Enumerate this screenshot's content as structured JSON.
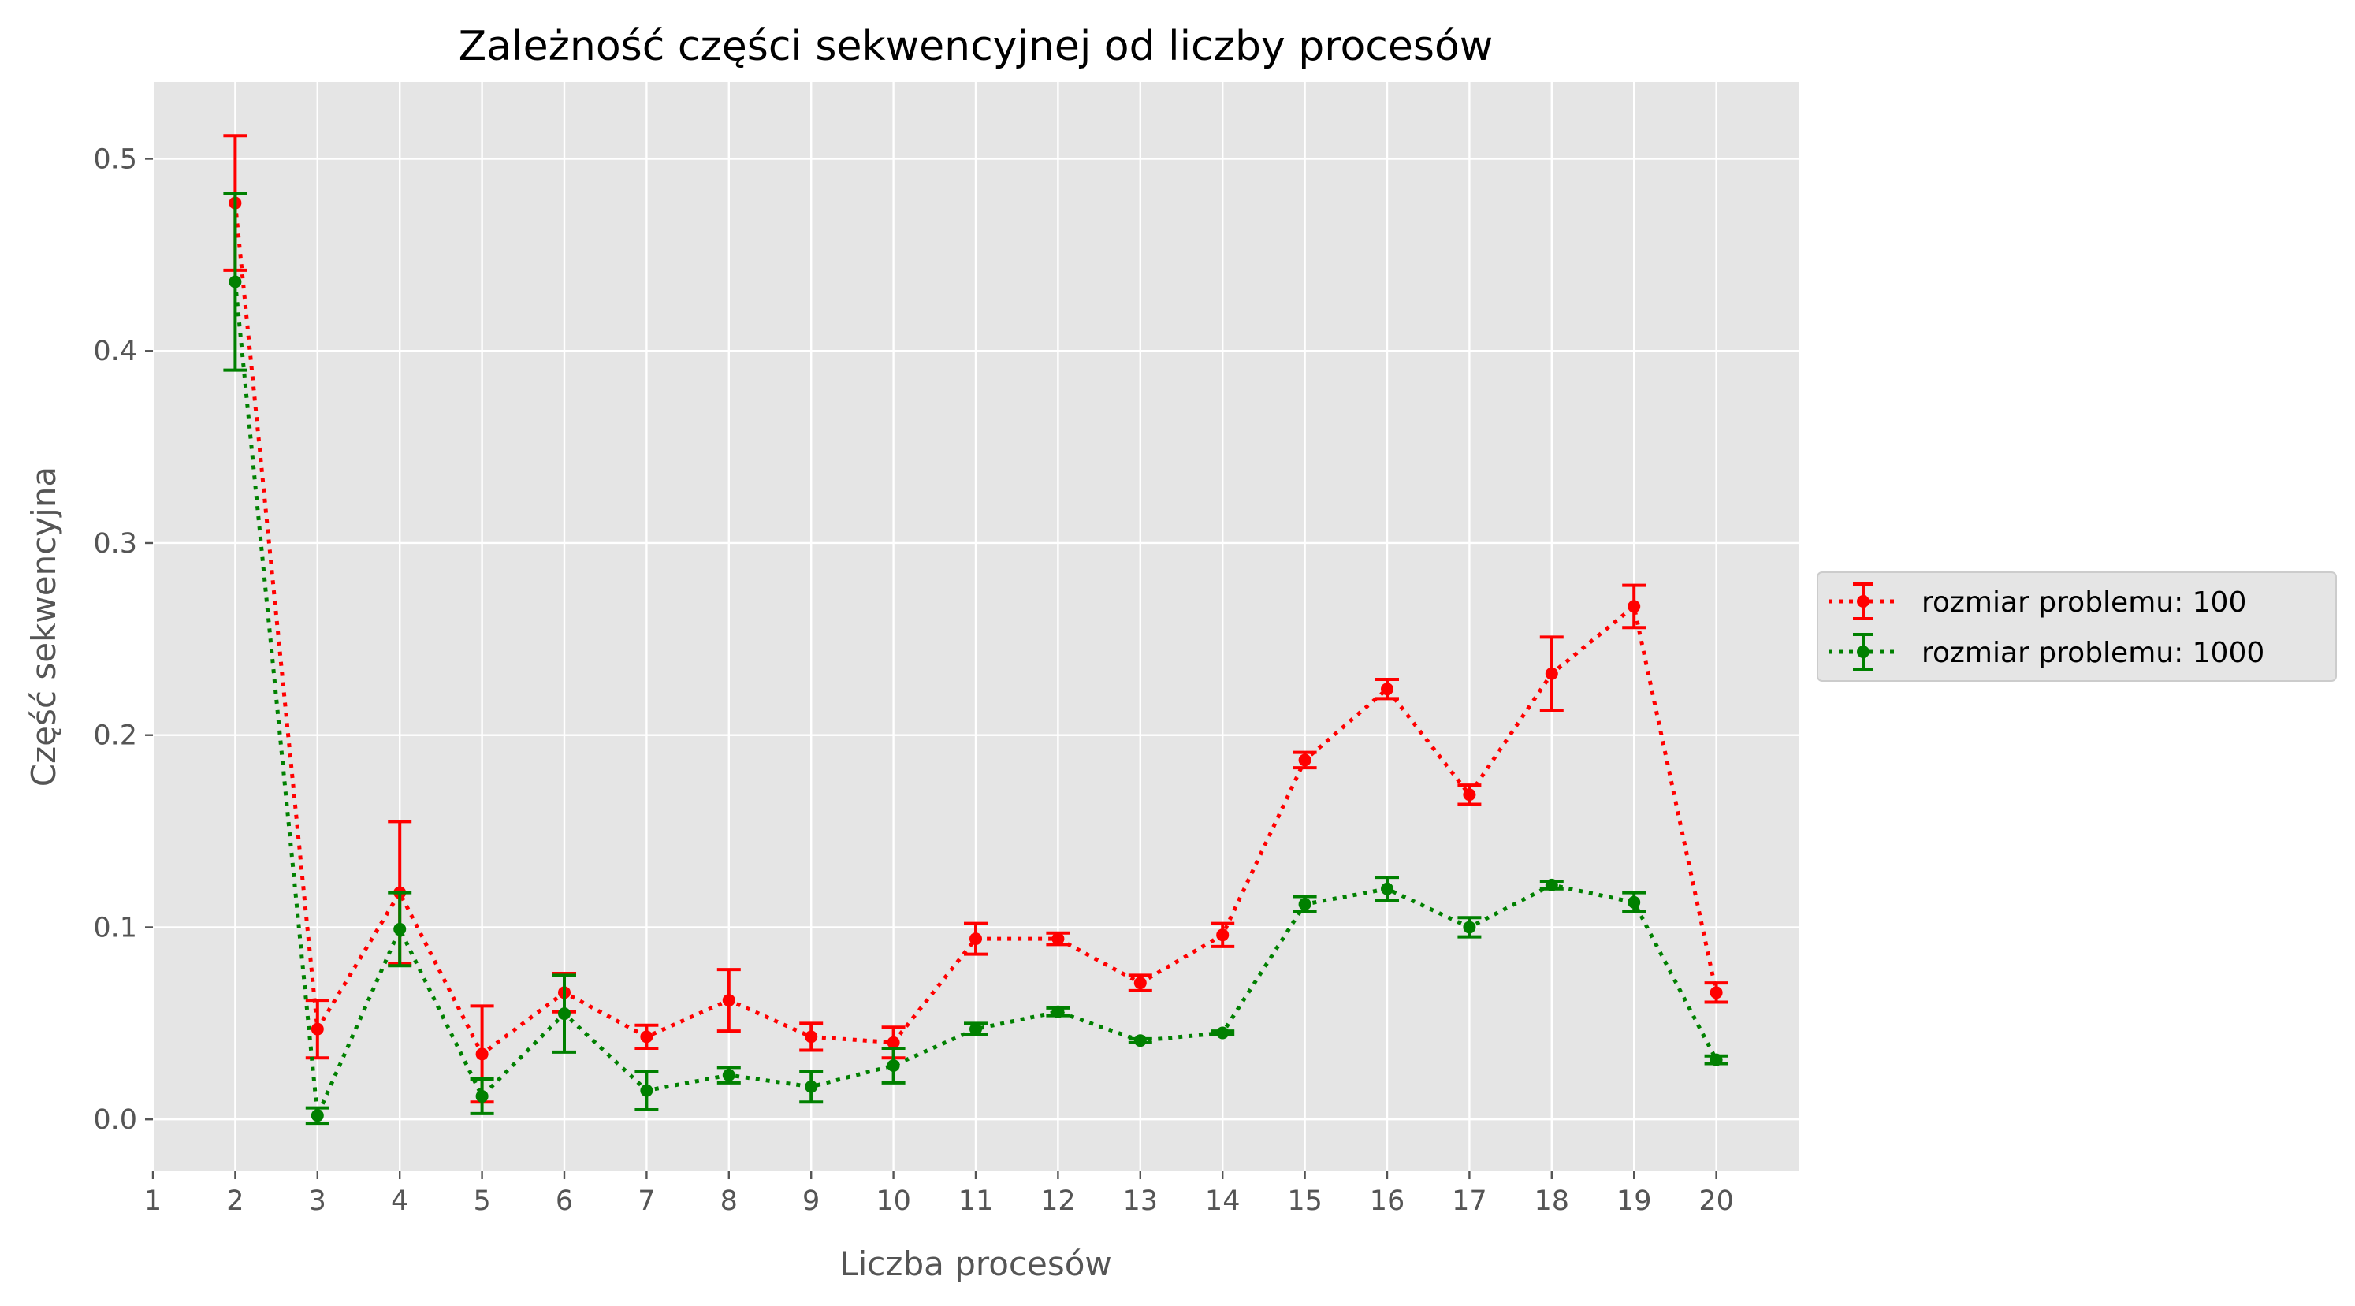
{
  "chart_data": {
    "type": "line",
    "title": "Zależność części sekwencyjnej od liczby procesów",
    "xlabel": "Liczba procesów",
    "ylabel": "Część sekwencyjna",
    "xlim": [
      1,
      21
    ],
    "ylim": [
      -0.027,
      0.54
    ],
    "xticks": [
      "1",
      "2",
      "3",
      "4",
      "5",
      "6",
      "7",
      "8",
      "9",
      "10",
      "11",
      "12",
      "13",
      "14",
      "15",
      "16",
      "17",
      "18",
      "19",
      "20"
    ],
    "yticks": [
      "0.0",
      "0.1",
      "0.2",
      "0.3",
      "0.4",
      "0.5"
    ],
    "grid": true,
    "legend_position": "center-right-outside",
    "x": [
      2,
      3,
      4,
      5,
      6,
      7,
      8,
      9,
      10,
      11,
      12,
      13,
      14,
      15,
      16,
      17,
      18,
      19,
      20
    ],
    "series": [
      {
        "name": "rozmiar problemu: 100",
        "color": "#ff0000",
        "values": [
          0.477,
          0.047,
          0.118,
          0.034,
          0.066,
          0.043,
          0.062,
          0.043,
          0.04,
          0.094,
          0.094,
          0.071,
          0.096,
          0.187,
          0.224,
          0.169,
          0.232,
          0.267,
          0.066
        ],
        "errors": [
          0.035,
          0.015,
          0.037,
          0.025,
          0.01,
          0.006,
          0.016,
          0.007,
          0.008,
          0.008,
          0.003,
          0.004,
          0.006,
          0.004,
          0.005,
          0.005,
          0.019,
          0.011,
          0.005
        ]
      },
      {
        "name": "rozmiar problemu: 1000",
        "color": "#008000",
        "values": [
          0.436,
          0.002,
          0.099,
          0.012,
          0.055,
          0.015,
          0.023,
          0.017,
          0.028,
          0.047,
          0.056,
          0.041,
          0.045,
          0.112,
          0.12,
          0.1,
          0.122,
          0.113,
          0.031
        ],
        "errors": [
          0.046,
          0.004,
          0.019,
          0.009,
          0.02,
          0.01,
          0.004,
          0.008,
          0.009,
          0.003,
          0.002,
          0.001,
          0.001,
          0.004,
          0.006,
          0.005,
          0.002,
          0.005,
          0.002
        ]
      }
    ]
  }
}
